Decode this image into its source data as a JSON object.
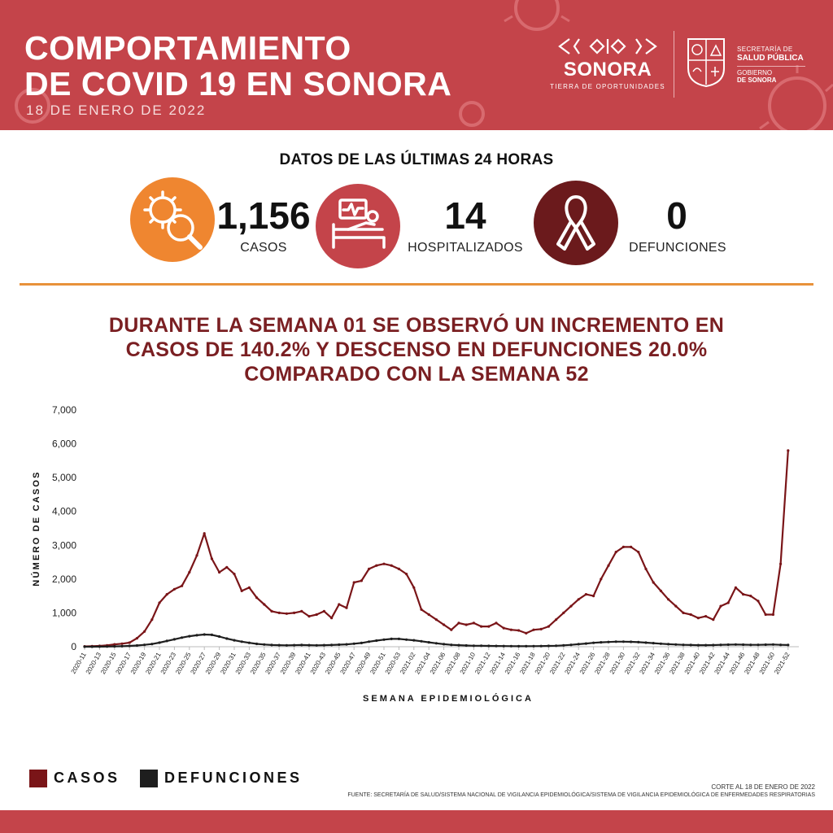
{
  "header": {
    "title_line1": "COMPORTAMIENTO",
    "title_line2": "DE COVID 19 EN SONORA",
    "date": "18 DE ENERO DE 2022",
    "brand_name": "SONORA",
    "brand_tagline": "TIERRA DE OPORTUNIDADES",
    "secretaria_line1": "SECRETARÍA DE",
    "secretaria_line2": "SALUD PÚBLICA",
    "gobierno_line1": "GOBIERNO",
    "gobierno_line2": "DE SONORA",
    "colors": {
      "header_bg": "#c4444a",
      "accent_orange": "#ef8630",
      "dark_red": "#6b1a1c",
      "headline_red": "#7a1f22"
    }
  },
  "stats": {
    "heading": "DATOS DE LAS ÚLTIMAS 24 HORAS",
    "items": [
      {
        "icon": "virus-magnifier-icon",
        "value": "1,156",
        "label": "CASOS",
        "color": "#ef8630"
      },
      {
        "icon": "hospital-bed-icon",
        "value": "14",
        "label": "HOSPITALIZADOS",
        "color": "#c4444a"
      },
      {
        "icon": "awareness-ribbon-icon",
        "value": "0",
        "label": "DEFUNCIONES",
        "color": "#6b1a1c"
      }
    ]
  },
  "headline": {
    "line1": "DURANTE LA SEMANA 01 SE OBSERVÓ UN INCREMENTO EN",
    "line2": "CASOS DE 140.2% Y DESCENSO EN DEFUNCIONES 20.0%",
    "line3": "COMPARADO CON LA SEMANA 52"
  },
  "chart_data": {
    "type": "line",
    "title": "",
    "xlabel": "SEMANA EPIDEMIOLÓGICA",
    "ylabel": "NÚMERO DE CASOS",
    "ylim": [
      0,
      7000
    ],
    "yticks": [
      0,
      1000,
      2000,
      3000,
      4000,
      5000,
      6000,
      7000
    ],
    "ytick_labels": [
      "0",
      "1,000",
      "2,000",
      "3,000",
      "4,000",
      "5,000",
      "6,000",
      "7,000"
    ],
    "grid": false,
    "legend": "bottom-left",
    "x": [
      "2020-11",
      "2020-12",
      "2020-13",
      "2020-14",
      "2020-15",
      "2020-16",
      "2020-17",
      "2020-18",
      "2020-19",
      "2020-20",
      "2020-21",
      "2020-22",
      "2020-23",
      "2020-24",
      "2020-25",
      "2020-26",
      "2020-27",
      "2020-28",
      "2020-29",
      "2020-30",
      "2020-31",
      "2020-32",
      "2020-33",
      "2020-34",
      "2020-35",
      "2020-36",
      "2020-37",
      "2020-38",
      "2020-39",
      "2020-40",
      "2020-41",
      "2020-42",
      "2020-43",
      "2020-44",
      "2020-45",
      "2020-46",
      "2020-47",
      "2020-48",
      "2020-49",
      "2020-50",
      "2020-51",
      "2020-52",
      "2020-53",
      "2021-01",
      "2021-02",
      "2021-03",
      "2021-04",
      "2021-05",
      "2021-06",
      "2021-07",
      "2021-08",
      "2021-09",
      "2021-10",
      "2021-11",
      "2021-12",
      "2021-13",
      "2021-14",
      "2021-15",
      "2021-16",
      "2021-17",
      "2021-18",
      "2021-19",
      "2021-20",
      "2021-21",
      "2021-22",
      "2021-23",
      "2021-24",
      "2021-25",
      "2021-26",
      "2021-27",
      "2021-28",
      "2021-29",
      "2021-30",
      "2021-31",
      "2021-32",
      "2021-33",
      "2021-34",
      "2021-35",
      "2021-36",
      "2021-37",
      "2021-38",
      "2021-39",
      "2021-40",
      "2021-41",
      "2021-42",
      "2021-43",
      "2021-44",
      "2021-45",
      "2021-46",
      "2021-47",
      "2021-48",
      "2021-49",
      "2021-50",
      "2021-51",
      "2021-52",
      "2022-01"
    ],
    "x_tick_labels": [
      "2020-11",
      "2020-13",
      "2020-15",
      "2020-17",
      "2020-19",
      "2020-21",
      "2020-23",
      "2020-25",
      "2020-27",
      "2020-29",
      "2020-31",
      "2020-33",
      "2020-35",
      "2020-37",
      "2020-39",
      "2020-41",
      "2020-43",
      "2020-45",
      "2020-47",
      "2020-49",
      "2020-51",
      "2020-53",
      "2021-02",
      "2021-04",
      "2021-06",
      "2021-08",
      "2021-10",
      "2021-12",
      "2021-14",
      "2021-16",
      "2021-18",
      "2021-20",
      "2021-22",
      "2021-24",
      "2021-26",
      "2021-28",
      "2021-30",
      "2021-32",
      "2021-34",
      "2021-36",
      "2021-38",
      "2021-40",
      "2021-42",
      "2021-44",
      "2021-46",
      "2021-48",
      "2021-50",
      "2021-52"
    ],
    "series": [
      {
        "name": "CASOS",
        "color": "#7a1518",
        "values": [
          10,
          15,
          25,
          40,
          70,
          90,
          120,
          250,
          450,
          800,
          1300,
          1550,
          1700,
          1800,
          2200,
          2700,
          3350,
          2600,
          2200,
          2350,
          2150,
          1650,
          1750,
          1450,
          1250,
          1050,
          1000,
          980,
          1000,
          1050,
          900,
          950,
          1050,
          850,
          1250,
          1150,
          1900,
          1950,
          2300,
          2400,
          2450,
          2400,
          2300,
          2150,
          1750,
          1100,
          950,
          800,
          650,
          500,
          700,
          650,
          700,
          600,
          600,
          700,
          550,
          500,
          480,
          400,
          500,
          520,
          600,
          800,
          1000,
          1200,
          1400,
          1550,
          1500,
          2000,
          2400,
          2800,
          2950,
          2950,
          2800,
          2300,
          1900,
          1650,
          1400,
          1200,
          1000,
          950,
          850,
          900,
          800,
          1200,
          1300,
          1750,
          1550,
          1500,
          1350,
          950,
          950,
          2450,
          5800,
          null
        ]
      },
      {
        "name": "DEFUNCIONES",
        "color": "#1e1e1e",
        "values": [
          0,
          1,
          2,
          5,
          10,
          15,
          25,
          35,
          55,
          80,
          120,
          170,
          220,
          270,
          310,
          340,
          360,
          350,
          300,
          240,
          190,
          150,
          115,
          85,
          65,
          50,
          45,
          40,
          45,
          50,
          45,
          40,
          45,
          50,
          60,
          70,
          90,
          110,
          150,
          180,
          210,
          230,
          230,
          210,
          190,
          160,
          130,
          100,
          75,
          55,
          45,
          35,
          30,
          28,
          25,
          22,
          20,
          18,
          15,
          15,
          18,
          20,
          25,
          30,
          40,
          55,
          75,
          95,
          115,
          130,
          140,
          150,
          150,
          145,
          135,
          120,
          105,
          90,
          75,
          65,
          55,
          50,
          45,
          45,
          48,
          55,
          60,
          65,
          60,
          55,
          55,
          60,
          65,
          55,
          50,
          null
        ]
      }
    ]
  },
  "legend": {
    "items": [
      {
        "label": "CASOS",
        "color": "#7a1518"
      },
      {
        "label": "DEFUNCIONES",
        "color": "#1e1e1e"
      }
    ]
  },
  "notes": {
    "corte": "CORTE AL 18 DE ENERO DE 2022",
    "fuente": "FUENTE: SECRETARÍA DE SALUD/SISTEMA NACIONAL DE VIGILANCIA EPIDEMIOLÓGICA/SISTEMA DE VIGILANCIA EPIDEMIOLÓGICA DE ENFERMEDADES RESPIRATORIAS"
  }
}
